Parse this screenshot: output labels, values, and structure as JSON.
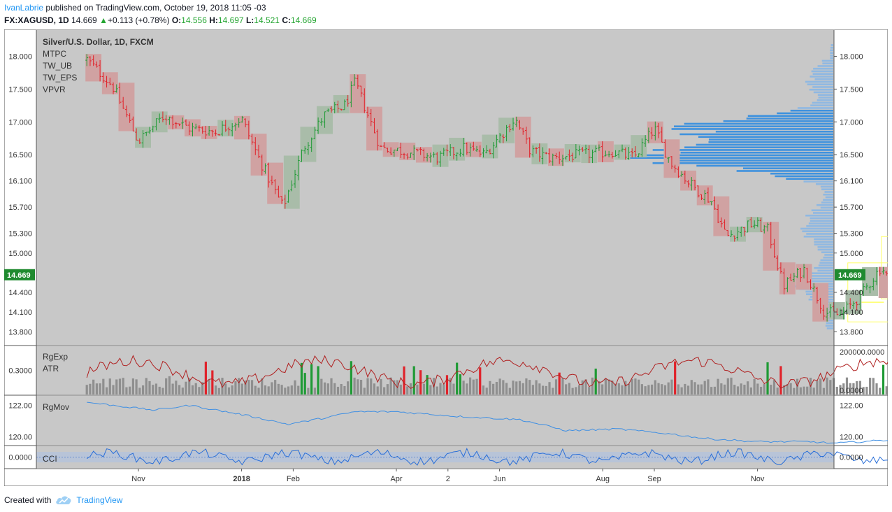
{
  "header": {
    "author": "IvanLabrie",
    "published_text": "published on TradingView.com, October 19, 2018 11:05 -03",
    "symbol": "FX:XAGUSD, 1D",
    "last": "14.669",
    "change_arrow": "▲",
    "change": "+0.113 (+0.78%)",
    "o_label": "O:",
    "o_value": "14.556",
    "h_label": "H:",
    "h_value": "14.697",
    "l_label": "L:",
    "l_value": "14.521",
    "c_label": "C:",
    "c_value": "14.669"
  },
  "footer": {
    "created_with": "Created with",
    "brand": "TradingView"
  },
  "colors": {
    "chart_bg": "#c8c8c8",
    "up": "#1f9a35",
    "down": "#e0222a",
    "up_box": "#a9bca9",
    "down_box": "#d0a2a2",
    "vpvr_strong": "#3f92de",
    "vpvr_light": "#8fb8e2",
    "price_tag": "#1f8a2f",
    "line_blue": "#3f8fe3",
    "atr_line": "#b02020",
    "highlight": "#ffff66"
  },
  "chart_data": {
    "type": "candlestick",
    "interval": "1D",
    "main_pane": {
      "title": "Silver/U.S. Dollar, 1D, FXCM",
      "indicator_labels": [
        "MTPC",
        "TW_UB",
        "TW_EPS",
        "VPVR"
      ],
      "y_ticks": [
        18.0,
        17.5,
        17.0,
        16.5,
        16.1,
        15.7,
        15.3,
        15.0,
        14.4,
        14.1,
        13.8
      ],
      "y_tick_labels": [
        "18.000",
        "17.500",
        "17.000",
        "16.500",
        "16.100",
        "15.700",
        "15.300",
        "15.000",
        "14.400",
        "14.100",
        "13.800"
      ],
      "current_price": 14.669,
      "current_price_label": "14.669",
      "ylim": [
        13.6,
        18.4
      ],
      "close_path": [
        {
          "m": 0,
          "c": 17.95
        },
        {
          "m": 0.5,
          "c": 17.55
        },
        {
          "m": 1,
          "c": 16.7
        },
        {
          "m": 1.5,
          "c": 17.1
        },
        {
          "m": 2,
          "c": 16.9
        },
        {
          "m": 2.5,
          "c": 16.85
        },
        {
          "m": 3,
          "c": 17.05
        },
        {
          "m": 3.3,
          "c": 16.5
        },
        {
          "m": 3.8,
          "c": 15.7
        },
        {
          "m": 4.2,
          "c": 16.6
        },
        {
          "m": 4.6,
          "c": 17.1
        },
        {
          "m": 5.0,
          "c": 17.25
        },
        {
          "m": 5.2,
          "c": 17.6
        },
        {
          "m": 5.4,
          "c": 17.2
        },
        {
          "m": 5.7,
          "c": 16.6
        },
        {
          "m": 6.2,
          "c": 16.55
        },
        {
          "m": 6.8,
          "c": 16.45
        },
        {
          "m": 7.3,
          "c": 16.6
        },
        {
          "m": 7.7,
          "c": 16.5
        },
        {
          "m": 8.3,
          "c": 17.05
        },
        {
          "m": 8.6,
          "c": 16.55
        },
        {
          "m": 9.0,
          "c": 16.45
        },
        {
          "m": 9.6,
          "c": 16.5
        },
        {
          "m": 10.2,
          "c": 16.55
        },
        {
          "m": 10.6,
          "c": 16.45
        },
        {
          "m": 11.0,
          "c": 16.9
        },
        {
          "m": 11.3,
          "c": 16.4
        },
        {
          "m": 11.7,
          "c": 16.05
        },
        {
          "m": 12.1,
          "c": 15.8
        },
        {
          "m": 12.4,
          "c": 15.25
        },
        {
          "m": 12.9,
          "c": 15.45
        },
        {
          "m": 13.2,
          "c": 15.35
        },
        {
          "m": 13.5,
          "c": 14.5
        },
        {
          "m": 13.9,
          "c": 14.75
        },
        {
          "m": 14.3,
          "c": 14.1
        },
        {
          "m": 14.6,
          "c": 14.05
        },
        {
          "m": 15.0,
          "c": 14.35
        },
        {
          "m": 15.4,
          "c": 14.8
        },
        {
          "m": 15.65,
          "c": 14.45
        },
        {
          "m": 15.95,
          "c": 14.67
        }
      ],
      "highlight_boxes": [
        {
          "x0": 14.75,
          "x1": 15.7,
          "y0": 13.95,
          "y1": 14.85
        },
        {
          "x0": 15.4,
          "x1": 16.3,
          "y0": 14.3,
          "y1": 15.25
        }
      ],
      "vpvr": {
        "x_range": [
          16.2,
          17.0
        ],
        "value_area": [
          16.1,
          17.2
        ],
        "peak_price": 16.5
      }
    },
    "volume_pane": {
      "labels": [
        "RgExp",
        "ATR"
      ],
      "left_ticks": [
        0.3
      ],
      "left_tick_labels": [
        "0.3000"
      ],
      "right_tick_labels": [
        "200000.0000",
        "0.0000"
      ],
      "left_range": [
        0.25,
        0.35
      ],
      "right_range": [
        0,
        200000
      ]
    },
    "rgmov_pane": {
      "label": "RgMov",
      "y_ticks": [
        122.0,
        120.0
      ],
      "y_tick_labels": [
        "122.00",
        "120.00"
      ],
      "ylim": [
        119.5,
        122.6
      ],
      "path": [
        {
          "m": 0,
          "v": 122.2
        },
        {
          "m": 1.3,
          "v": 121.7
        },
        {
          "m": 2.0,
          "v": 122.0
        },
        {
          "m": 3.2,
          "v": 121.3
        },
        {
          "m": 3.9,
          "v": 120.8
        },
        {
          "m": 4.6,
          "v": 121.2
        },
        {
          "m": 5.2,
          "v": 121.6
        },
        {
          "m": 6.0,
          "v": 121.6
        },
        {
          "m": 7.2,
          "v": 121.3
        },
        {
          "m": 8.4,
          "v": 121.1
        },
        {
          "m": 9.3,
          "v": 120.4
        },
        {
          "m": 10.3,
          "v": 120.5
        },
        {
          "m": 11.3,
          "v": 120.2
        },
        {
          "m": 12.0,
          "v": 119.9
        },
        {
          "m": 13.0,
          "v": 119.7
        },
        {
          "m": 14.0,
          "v": 119.7
        },
        {
          "m": 14.5,
          "v": 119.6
        },
        {
          "m": 15.5,
          "v": 119.8
        },
        {
          "m": 15.95,
          "v": 120.0
        }
      ]
    },
    "cci_pane": {
      "label": "CCI",
      "y_ticks": [
        0
      ],
      "y_tick_labels": [
        "0.0000"
      ],
      "ylim": [
        -150,
        150
      ]
    },
    "x_axis": {
      "ticks": [
        {
          "label": "Nov",
          "m": 1.0,
          "bold": false
        },
        {
          "label": "2018",
          "m": 3.0,
          "bold": true
        },
        {
          "label": "Feb",
          "m": 4.0,
          "bold": false
        },
        {
          "label": "Apr",
          "m": 6.0,
          "bold": false
        },
        {
          "label": "2",
          "m": 7.0,
          "bold": false
        },
        {
          "label": "Jun",
          "m": 8.0,
          "bold": false
        },
        {
          "label": "Aug",
          "m": 10.0,
          "bold": false
        },
        {
          "label": "Sep",
          "m": 11.0,
          "bold": false
        },
        {
          "label": "Nov",
          "m": 13.0,
          "bold": false
        }
      ]
    }
  }
}
